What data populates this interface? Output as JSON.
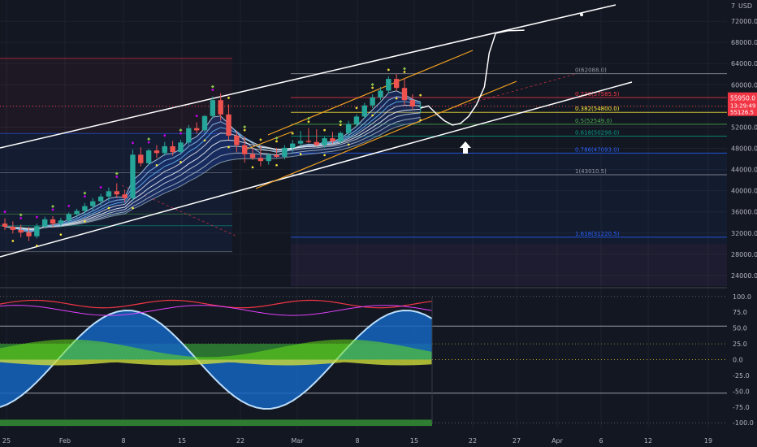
{
  "chart_data": [
    {
      "type": "candlestick",
      "title": "",
      "currency": "USD",
      "currency_prefix": "7",
      "price_label": "55950.0",
      "countdown_label": "13:29:49",
      "sub_price_label": "55126.5",
      "y_ticks": [
        "72000.0",
        "68000.0",
        "64000.0",
        "60000.0",
        "56000.0",
        "52000.0",
        "48000.0",
        "44000.0",
        "40000.0",
        "36000.0",
        "32000.0",
        "28000.0",
        "24000.0"
      ],
      "ylim": [
        22000,
        76000
      ],
      "x_ticks": [
        "25",
        "Feb",
        "8",
        "15",
        "22",
        "Mar",
        "8",
        "15",
        "22",
        "27",
        "Apr",
        "6",
        "12",
        "19"
      ],
      "fib_levels": [
        {
          "label": "0(62088.0)",
          "price": 62088,
          "color": "#9598a1"
        },
        {
          "label": "0.236(57585.5)",
          "price": 57585.5,
          "color": "#f23645"
        },
        {
          "label": "0.382(54800.0)",
          "price": 54800,
          "color": "#ffeb3b"
        },
        {
          "label": "0.5(52549.0)",
          "price": 52549,
          "color": "#4caf50"
        },
        {
          "label": "0.618(50298.0)",
          "price": 50298,
          "color": "#089981"
        },
        {
          "label": "0.786(47093.0)",
          "price": 47093,
          "color": "#2962ff"
        },
        {
          "label": "1(43010.5)",
          "price": 43010.5,
          "color": "#9598a1"
        },
        {
          "label": "1.618(31220.5)",
          "price": 31220.5,
          "color": "#2962ff"
        }
      ],
      "candles": [
        {
          "o": 33800,
          "h": 34800,
          "l": 32600,
          "c": 33200
        },
        {
          "o": 33200,
          "h": 34200,
          "l": 31900,
          "c": 32600
        },
        {
          "o": 32600,
          "h": 33600,
          "l": 31200,
          "c": 32100
        },
        {
          "o": 32100,
          "h": 33200,
          "l": 30500,
          "c": 31400
        },
        {
          "o": 31400,
          "h": 33800,
          "l": 31000,
          "c": 33300
        },
        {
          "o": 33300,
          "h": 35100,
          "l": 32900,
          "c": 34600
        },
        {
          "o": 34600,
          "h": 35200,
          "l": 33200,
          "c": 33800
        },
        {
          "o": 33800,
          "h": 34900,
          "l": 33100,
          "c": 34400
        },
        {
          "o": 34400,
          "h": 35900,
          "l": 33900,
          "c": 35600
        },
        {
          "o": 35600,
          "h": 36600,
          "l": 34900,
          "c": 36200
        },
        {
          "o": 36200,
          "h": 37700,
          "l": 35600,
          "c": 37100
        },
        {
          "o": 37100,
          "h": 38600,
          "l": 36200,
          "c": 38000
        },
        {
          "o": 38000,
          "h": 39400,
          "l": 37200,
          "c": 38900
        },
        {
          "o": 38900,
          "h": 40600,
          "l": 38100,
          "c": 39900
        },
        {
          "o": 39900,
          "h": 41400,
          "l": 38600,
          "c": 39300
        },
        {
          "o": 39300,
          "h": 40200,
          "l": 37900,
          "c": 38600
        },
        {
          "o": 38600,
          "h": 47800,
          "l": 38100,
          "c": 46800
        },
        {
          "o": 46800,
          "h": 48200,
          "l": 44600,
          "c": 45200
        },
        {
          "o": 45200,
          "h": 47900,
          "l": 44800,
          "c": 47600
        },
        {
          "o": 47600,
          "h": 48600,
          "l": 46200,
          "c": 47100
        },
        {
          "o": 47100,
          "h": 49200,
          "l": 46600,
          "c": 48400
        },
        {
          "o": 48400,
          "h": 49400,
          "l": 46600,
          "c": 47300
        },
        {
          "o": 47300,
          "h": 49600,
          "l": 46800,
          "c": 49100
        },
        {
          "o": 49100,
          "h": 52400,
          "l": 48600,
          "c": 51800
        },
        {
          "o": 51800,
          "h": 52900,
          "l": 50800,
          "c": 51400
        },
        {
          "o": 51400,
          "h": 54300,
          "l": 50900,
          "c": 54100
        },
        {
          "o": 54100,
          "h": 57800,
          "l": 53600,
          "c": 57100
        },
        {
          "o": 57100,
          "h": 58400,
          "l": 53200,
          "c": 54400
        },
        {
          "o": 54400,
          "h": 56300,
          "l": 49600,
          "c": 50400
        },
        {
          "o": 50400,
          "h": 51300,
          "l": 47300,
          "c": 48600
        },
        {
          "o": 48600,
          "h": 50200,
          "l": 45300,
          "c": 46900
        },
        {
          "o": 46900,
          "h": 48100,
          "l": 45800,
          "c": 46200
        },
        {
          "o": 46200,
          "h": 48400,
          "l": 44600,
          "c": 45600
        },
        {
          "o": 45600,
          "h": 47100,
          "l": 44900,
          "c": 46700
        },
        {
          "o": 46700,
          "h": 48100,
          "l": 46200,
          "c": 46400
        },
        {
          "o": 46400,
          "h": 48600,
          "l": 45900,
          "c": 48100
        },
        {
          "o": 48100,
          "h": 49600,
          "l": 47100,
          "c": 48900
        },
        {
          "o": 48900,
          "h": 51300,
          "l": 48300,
          "c": 49400
        },
        {
          "o": 49400,
          "h": 51800,
          "l": 49000,
          "c": 49200
        },
        {
          "o": 49200,
          "h": 51600,
          "l": 48400,
          "c": 48600
        },
        {
          "o": 48600,
          "h": 50200,
          "l": 48100,
          "c": 49900
        },
        {
          "o": 49900,
          "h": 51100,
          "l": 48900,
          "c": 49300
        },
        {
          "o": 49300,
          "h": 51200,
          "l": 48900,
          "c": 50900
        },
        {
          "o": 50900,
          "h": 53200,
          "l": 50100,
          "c": 52600
        },
        {
          "o": 52600,
          "h": 54400,
          "l": 52100,
          "c": 54000
        },
        {
          "o": 54000,
          "h": 56600,
          "l": 53600,
          "c": 56100
        },
        {
          "o": 56100,
          "h": 58200,
          "l": 55600,
          "c": 57600
        },
        {
          "o": 57600,
          "h": 59600,
          "l": 57100,
          "c": 58900
        },
        {
          "o": 58900,
          "h": 61600,
          "l": 58400,
          "c": 61100
        },
        {
          "o": 61100,
          "h": 62000,
          "l": 58800,
          "c": 59400
        },
        {
          "o": 59400,
          "h": 61200,
          "l": 56100,
          "c": 57100
        },
        {
          "o": 57100,
          "h": 58200,
          "l": 55300,
          "c": 55900
        },
        {
          "o": 55900,
          "h": 56800,
          "l": 54700,
          "c": 55950
        }
      ],
      "projection": [
        {
          "i": 52,
          "p": 55600
        },
        {
          "i": 53,
          "p": 56000
        },
        {
          "i": 54,
          "p": 54500
        },
        {
          "i": 55,
          "p": 53200
        },
        {
          "i": 56,
          "p": 52400
        },
        {
          "i": 57,
          "p": 52700
        },
        {
          "i": 58,
          "p": 54000
        },
        {
          "i": 59,
          "p": 56200
        },
        {
          "i": 60,
          "p": 59600
        },
        {
          "i": 60.6,
          "p": 66000
        },
        {
          "i": 61.4,
          "p": 69700
        },
        {
          "i": 63,
          "p": 70200
        },
        {
          "i": 65,
          "p": 70300
        }
      ]
    },
    {
      "type": "oscillator",
      "y_ticks": [
        "100.0",
        "75.0",
        "50.0",
        "25.0",
        "0.0",
        "-25.0",
        "-50.0",
        "-75.0",
        "-100.0"
      ],
      "ylim": [
        -110,
        110
      ],
      "levels": [
        100,
        53,
        25,
        0,
        -53,
        -100
      ]
    }
  ]
}
